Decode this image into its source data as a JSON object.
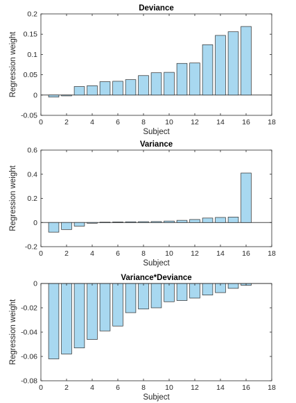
{
  "chart_data": [
    {
      "type": "bar",
      "title": "Deviance",
      "xlabel": "Subject",
      "ylabel": "Regression weight",
      "xlim": [
        0,
        18
      ],
      "ylim": [
        -0.05,
        0.2
      ],
      "xticks": [
        0,
        2,
        4,
        6,
        8,
        10,
        12,
        14,
        16,
        18
      ],
      "yticks": [
        -0.05,
        0,
        0.05,
        0.1,
        0.15,
        0.2
      ],
      "ytick_labels": [
        "-0.05",
        "0",
        "0.05",
        "0.1",
        "0.15",
        "0.2"
      ],
      "grid": false,
      "bar_color": "#a8d8f0",
      "edge_color": "#2a2a2a",
      "x": [
        1,
        2,
        3,
        4,
        5,
        6,
        7,
        8,
        9,
        10,
        11,
        12,
        13,
        14,
        15,
        16
      ],
      "values": [
        -0.005,
        -0.002,
        0.021,
        0.023,
        0.033,
        0.034,
        0.038,
        0.048,
        0.055,
        0.056,
        0.078,
        0.079,
        0.124,
        0.147,
        0.156,
        0.169
      ]
    },
    {
      "type": "bar",
      "title": "Variance",
      "xlabel": "Subject",
      "ylabel": "Regression weight",
      "xlim": [
        0,
        18
      ],
      "ylim": [
        -0.2,
        0.6
      ],
      "xticks": [
        0,
        2,
        4,
        6,
        8,
        10,
        12,
        14,
        16,
        18
      ],
      "yticks": [
        -0.2,
        0,
        0.2,
        0.4,
        0.6
      ],
      "ytick_labels": [
        "-0.2",
        "0",
        "0.2",
        "0.4",
        "0.6"
      ],
      "grid": false,
      "bar_color": "#a8d8f0",
      "edge_color": "#2a2a2a",
      "x": [
        1,
        2,
        3,
        4,
        5,
        6,
        7,
        8,
        9,
        10,
        11,
        12,
        13,
        14,
        15,
        16
      ],
      "values": [
        -0.08,
        -0.058,
        -0.03,
        -0.006,
        0.003,
        0.005,
        0.006,
        0.007,
        0.008,
        0.012,
        0.018,
        0.025,
        0.037,
        0.042,
        0.045,
        0.41
      ]
    },
    {
      "type": "bar",
      "title": "Variance*Deviance",
      "xlabel": "Subject",
      "ylabel": "Regression weight",
      "xlim": [
        0,
        18
      ],
      "ylim": [
        -0.08,
        0
      ],
      "xticks": [
        0,
        2,
        4,
        6,
        8,
        10,
        12,
        14,
        16,
        18
      ],
      "yticks": [
        -0.08,
        -0.06,
        -0.04,
        -0.02,
        0
      ],
      "ytick_labels": [
        "-0.08",
        "-0.06",
        "-0.04",
        "-0.02",
        "0"
      ],
      "grid": false,
      "bar_color": "#a8d8f0",
      "edge_color": "#2a2a2a",
      "x": [
        1,
        2,
        3,
        4,
        5,
        6,
        7,
        8,
        9,
        10,
        11,
        12,
        13,
        14,
        15,
        16
      ],
      "values": [
        -0.062,
        -0.058,
        -0.053,
        -0.046,
        -0.039,
        -0.035,
        -0.024,
        -0.021,
        -0.02,
        -0.015,
        -0.014,
        -0.012,
        -0.0095,
        -0.0075,
        -0.004,
        -0.0015
      ]
    }
  ]
}
